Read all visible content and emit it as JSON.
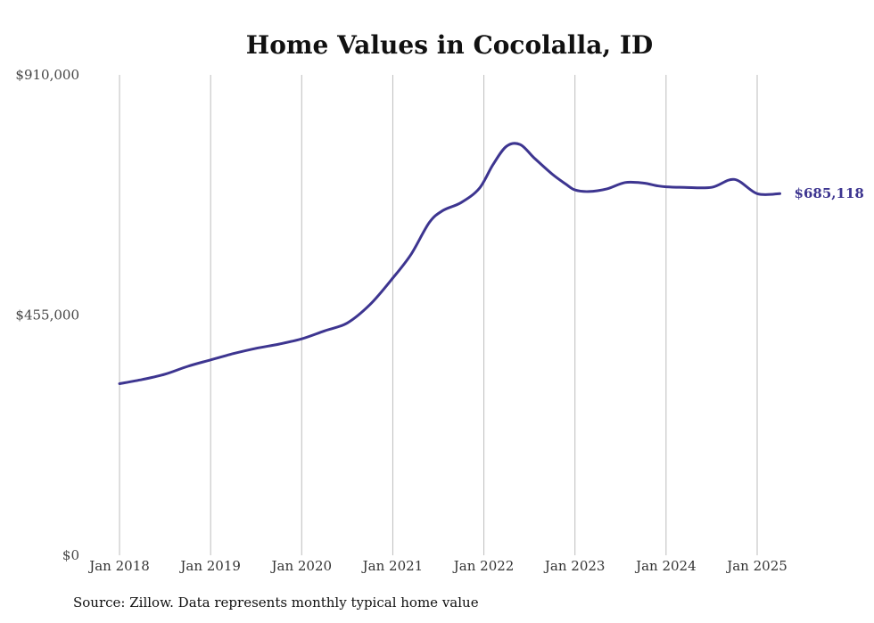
{
  "chart_data": {
    "type": "line",
    "title": "Home Values in Cocolalla, ID",
    "xlabel": "",
    "ylabel": "",
    "ylim": [
      0,
      910000
    ],
    "yticks": [
      {
        "value": 0,
        "label": "$0"
      },
      {
        "value": 455000,
        "label": "$455,000"
      },
      {
        "value": 910000,
        "label": "$910,000"
      }
    ],
    "xticks": [
      {
        "value": 2018,
        "label": "Jan 2018"
      },
      {
        "value": 2019,
        "label": "Jan 2019"
      },
      {
        "value": 2020,
        "label": "Jan 2020"
      },
      {
        "value": 2021,
        "label": "Jan 2021"
      },
      {
        "value": 2022,
        "label": "Jan 2022"
      },
      {
        "value": 2023,
        "label": "Jan 2023"
      },
      {
        "value": 2024,
        "label": "Jan 2024"
      },
      {
        "value": 2025,
        "label": "Jan 2025"
      }
    ],
    "grid": {
      "vertical": true,
      "horizontal": false
    },
    "line_color": "#3d3590",
    "end_label": "$685,118",
    "series": [
      {
        "x": [
          2018.0,
          2018.25,
          2018.5,
          2018.75,
          2019.0,
          2019.25,
          2019.5,
          2019.75,
          2020.0,
          2020.25,
          2020.5,
          2020.75,
          2021.0,
          2021.2,
          2021.4,
          2021.55,
          2021.75,
          2021.95,
          2022.1,
          2022.25,
          2022.4,
          2022.55,
          2022.75,
          2022.9,
          2023.0,
          2023.15,
          2023.35,
          2023.55,
          2023.75,
          2023.9,
          2024.0,
          2024.2,
          2024.5,
          2024.75,
          2025.0,
          2025.25
        ],
        "y": [
          325000,
          333000,
          343000,
          358000,
          370000,
          382000,
          392000,
          400000,
          410000,
          425000,
          440000,
          475000,
          525000,
          570000,
          630000,
          653000,
          668000,
          695000,
          740000,
          775000,
          778000,
          753000,
          722000,
          703000,
          692000,
          689000,
          694000,
          706000,
          705000,
          700000,
          698000,
          697000,
          697000,
          712000,
          685000,
          685118
        ]
      }
    ],
    "source": "Source: Zillow. Data represents monthly typical home value"
  }
}
